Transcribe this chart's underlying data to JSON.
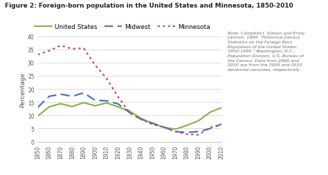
{
  "title": "Figure 2: Foreign-born population in the United States and Minnesota, 1850-2010",
  "ylabel": "Percentage",
  "background_color": "#ffffff",
  "years": [
    1850,
    1860,
    1870,
    1880,
    1890,
    1900,
    1910,
    1920,
    1930,
    1940,
    1950,
    1960,
    1970,
    1980,
    1990,
    2000,
    2010
  ],
  "us_values": [
    9.7,
    13.2,
    14.4,
    13.3,
    14.8,
    13.6,
    14.7,
    13.2,
    11.6,
    8.8,
    6.9,
    5.4,
    4.7,
    6.2,
    7.9,
    11.1,
    12.9
  ],
  "midwest_values": [
    13.0,
    17.2,
    18.0,
    17.2,
    18.5,
    15.7,
    15.5,
    14.3,
    11.0,
    8.5,
    7.0,
    5.5,
    3.8,
    3.5,
    3.8,
    4.9,
    6.6
  ],
  "minnesota_values": [
    33.0,
    34.5,
    36.5,
    35.2,
    35.5,
    29.0,
    24.0,
    17.0,
    11.0,
    8.5,
    6.5,
    5.5,
    3.8,
    2.8,
    2.6,
    5.3,
    6.6
  ],
  "us_color": "#8db050",
  "midwest_color": "#4472c4",
  "minnesota_color": "#c0504d",
  "note_text": "Note: Campbell J. Gibson and Emily\nLennon. 1999. \"Historical Census\nStatistics on the Foreign Born\nPopulation of the United States:\n1850-1990.\" Washington, D.C.:\nPopulation Division, U.S. Bureau of\nthe Census. Data from 2000 and\n2010 are from the 2000 and 2010\ndecennial censuses, respectively.",
  "ylim": [
    0,
    40
  ],
  "yticks": [
    0,
    5,
    10,
    15,
    20,
    25,
    30,
    35,
    40
  ],
  "legend_labels": [
    "United States",
    "Midwest",
    "Minnesota"
  ],
  "title_fontsize": 6.5,
  "tick_fontsize": 5.5,
  "ylabel_fontsize": 6.5,
  "legend_fontsize": 6.5,
  "note_fontsize": 4.5
}
